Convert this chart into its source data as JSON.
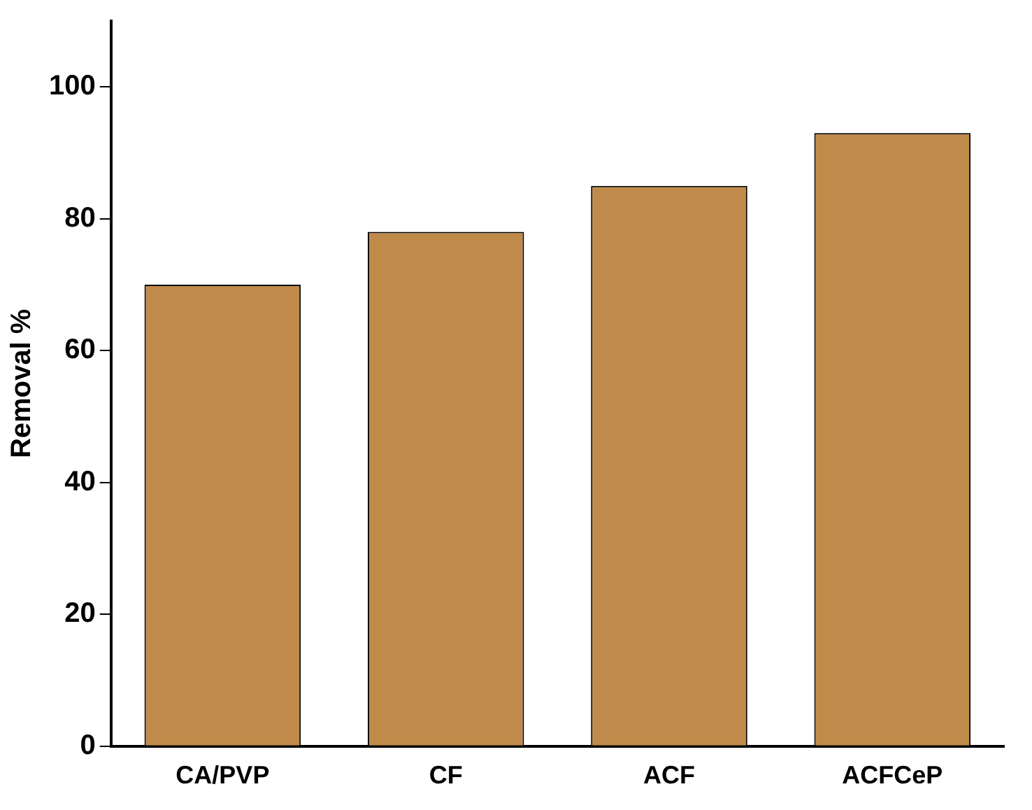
{
  "chart_data": {
    "type": "bar",
    "ylabel": "Removal %",
    "categories": [
      "CA/PVP",
      "CF",
      "ACF",
      "ACFCeP"
    ],
    "values": [
      70,
      78,
      85,
      93
    ],
    "color": "#c08a4a",
    "ylim": [
      0,
      110
    ],
    "yticks": [
      0,
      20,
      40,
      60,
      80,
      100
    ],
    "grid": false,
    "legend": false
  }
}
